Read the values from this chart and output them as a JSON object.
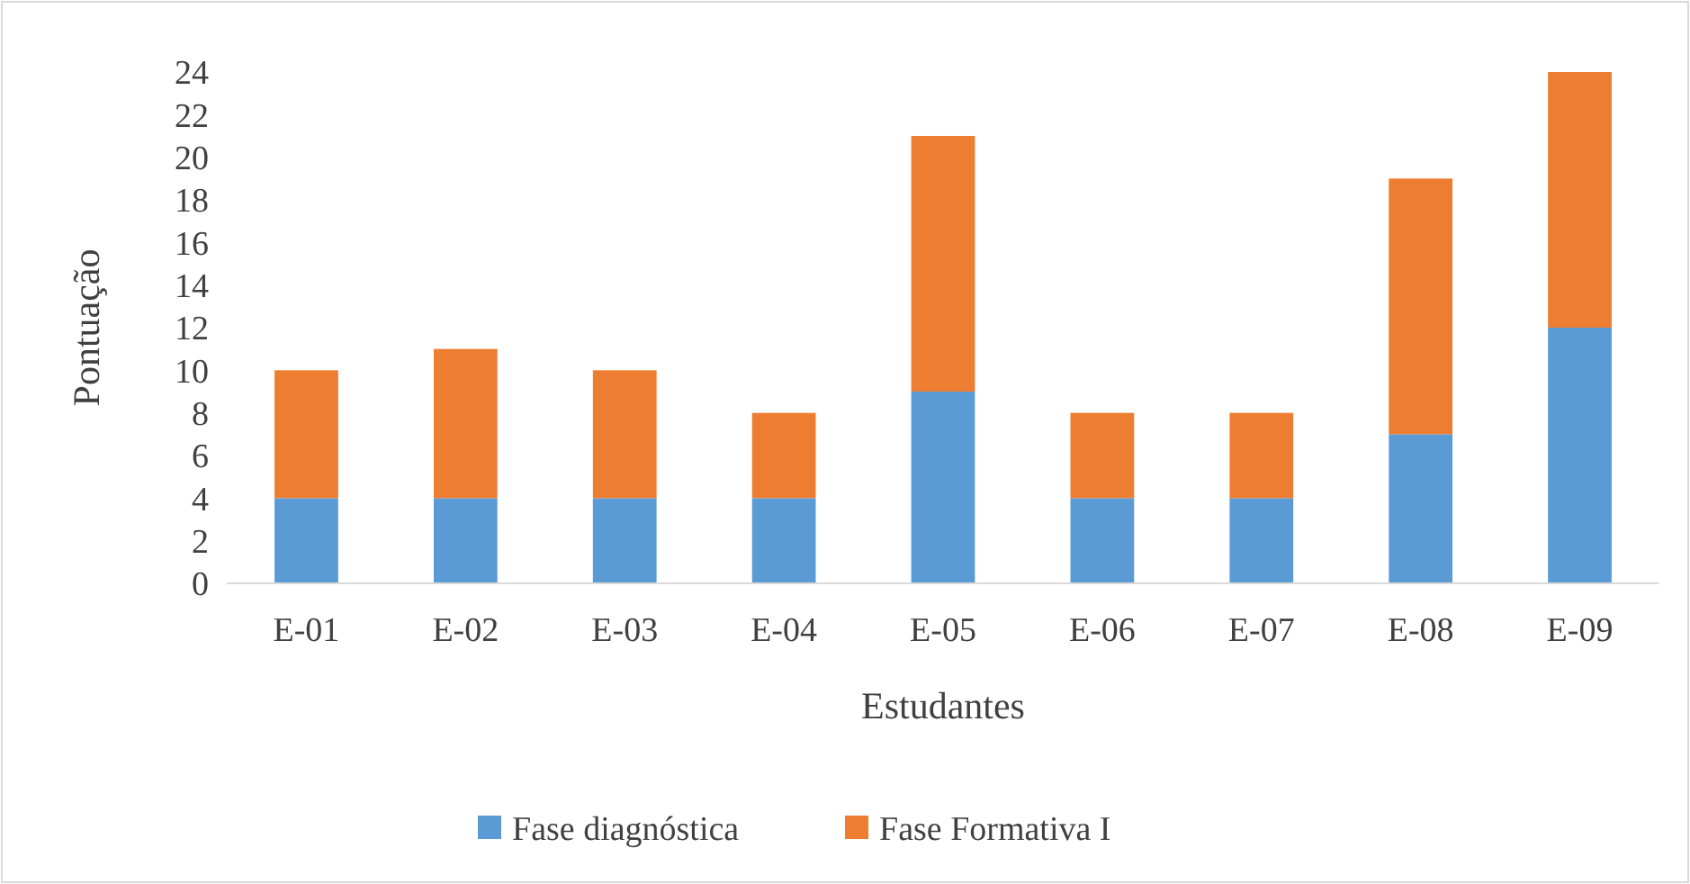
{
  "chart_data": {
    "type": "bar",
    "stacked": true,
    "xlabel": "Estudantes",
    "ylabel": "Pontuação",
    "categories": [
      "E-01",
      "E-02",
      "E-03",
      "E-04",
      "E-05",
      "E-06",
      "E-07",
      "E-08",
      "E-09"
    ],
    "series": [
      {
        "name": "Fase diagnóstica",
        "color": "#5b9bd5",
        "values": [
          4,
          4,
          4,
          4,
          9,
          4,
          4,
          7,
          12
        ]
      },
      {
        "name": "Fase Formativa I",
        "color": "#ed7d31",
        "values": [
          6,
          7,
          6,
          4,
          12,
          4,
          4,
          12,
          12
        ]
      }
    ],
    "ylim": [
      0,
      24
    ],
    "yticks": [
      0,
      2,
      4,
      6,
      8,
      10,
      12,
      14,
      16,
      18,
      20,
      22,
      24
    ],
    "grid": false,
    "legend": "bottom"
  }
}
